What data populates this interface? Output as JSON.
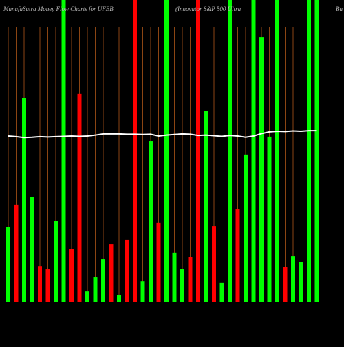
{
  "chart_data": {
    "type": "bar",
    "title": "MunafaSutra  Money Flow  Charts for UFEB",
    "subtitle": "(Innovator S&P 500  Ultra",
    "title_right": "Bu",
    "categories": [
      null,
      null,
      null,
      null,
      null,
      null,
      null,
      null,
      null,
      null,
      null,
      null,
      null,
      null,
      null,
      null,
      null,
      null,
      null,
      null,
      null,
      null,
      null,
      null,
      null,
      null,
      null,
      null,
      null,
      null,
      null,
      null,
      null,
      null,
      null,
      null,
      null,
      null,
      null,
      null
    ],
    "values": [
      25,
      32.3,
      67.5,
      35,
      12,
      10.9,
      27,
      100,
      17.5,
      68.9,
      3.6,
      8.4,
      14.3,
      19.3,
      2.3,
      20.7,
      100,
      7,
      53.4,
      26.4,
      100,
      16.4,
      11.1,
      15,
      100,
      63.2,
      25.2,
      6.4,
      100,
      30.9,
      48.9,
      100,
      87.7,
      54.8,
      100,
      11.6,
      15.2,
      13.4,
      100,
      100
    ],
    "colors": [
      "#00ff00",
      "#ff0000",
      "#00ff00",
      "#00ff00",
      "#ff0000",
      "#ff0000",
      "#00ff00",
      "#00ff00",
      "#ff0000",
      "#ff0000",
      "#00ff00",
      "#00ff00",
      "#00ff00",
      "#ff0000",
      "#00ff00",
      "#ff0000",
      "#ff0000",
      "#00ff00",
      "#00ff00",
      "#ff0000",
      "#00ff00",
      "#00ff00",
      "#00ff00",
      "#ff0000",
      "#ff0000",
      "#00ff00",
      "#ff0000",
      "#00ff00",
      "#00ff00",
      "#ff0000",
      "#00ff00",
      "#00ff00",
      "#00ff00",
      "#00ff00",
      "#00ff00",
      "#ff0000",
      "#00ff00",
      "#00ff00",
      "#00ff00",
      "#00ff00"
    ],
    "line": {
      "color": "#ffffff",
      "values": [
        55,
        54.8,
        54.5,
        54.6,
        54.8,
        54.7,
        54.8,
        54.9,
        55,
        54.9,
        55,
        55.3,
        55.7,
        55.7,
        55.7,
        55.6,
        55.6,
        55.5,
        55.6,
        55,
        55.3,
        55.5,
        55.7,
        55.6,
        55.2,
        55.3,
        55.1,
        54.9,
        55.2,
        55,
        54.6,
        55,
        55.8,
        56.4,
        56.6,
        56.5,
        56.7,
        56.6,
        56.8,
        56.8
      ]
    },
    "ylim": [
      0,
      100
    ],
    "grid": true,
    "grid_color": "#8b4513"
  }
}
